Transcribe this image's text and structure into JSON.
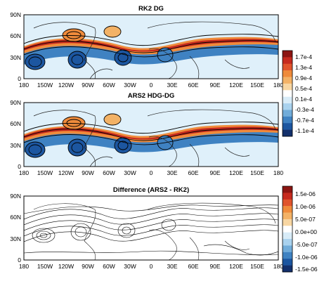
{
  "figure": {
    "panels": [
      {
        "id": "rk2",
        "title": "RK2 DG"
      },
      {
        "id": "ars2",
        "title": "ARS2 HDG-DG"
      },
      {
        "id": "diff",
        "title": "Difference (ARS2 - RK2)"
      }
    ],
    "lon_ticks": [
      "180",
      "150W",
      "120W",
      "90W",
      "60W",
      "30W",
      "0",
      "30E",
      "60E",
      "90E",
      "120E",
      "150E",
      "180"
    ],
    "lat_ticks": [
      "90N",
      "60N",
      "30N",
      "0"
    ],
    "colorbar_top": {
      "labels": [
        "1.7e-4",
        "1.3e-4",
        "0.9e-4",
        "0.5e-4",
        "0.1e-4",
        "-0.3e-4",
        "-0.7e-4",
        "-1.1e-4"
      ],
      "colors": [
        "#8c1512",
        "#c62a1e",
        "#e0542c",
        "#ef8b3b",
        "#f3b266",
        "#f8d6a2",
        "#ffffff",
        "#d8ecf8",
        "#a9d2ee",
        "#71acd9",
        "#3f82c2",
        "#1c56a0",
        "#13306c"
      ]
    },
    "colorbar_bottom": {
      "labels": [
        "1.5e-06",
        "1.0e-06",
        "5.0e-07",
        "0.0e+00",
        "-5.0e-07",
        "-1.0e-06",
        "-1.5e-06"
      ],
      "colors": [
        "#8c1512",
        "#c62a1e",
        "#e0542c",
        "#ef8b3b",
        "#f3b266",
        "#f8d6a2",
        "#ffffff",
        "#d8ecf8",
        "#a9d2ee",
        "#71acd9",
        "#3f82c2",
        "#1c56a0",
        "#13306c"
      ]
    }
  }
}
